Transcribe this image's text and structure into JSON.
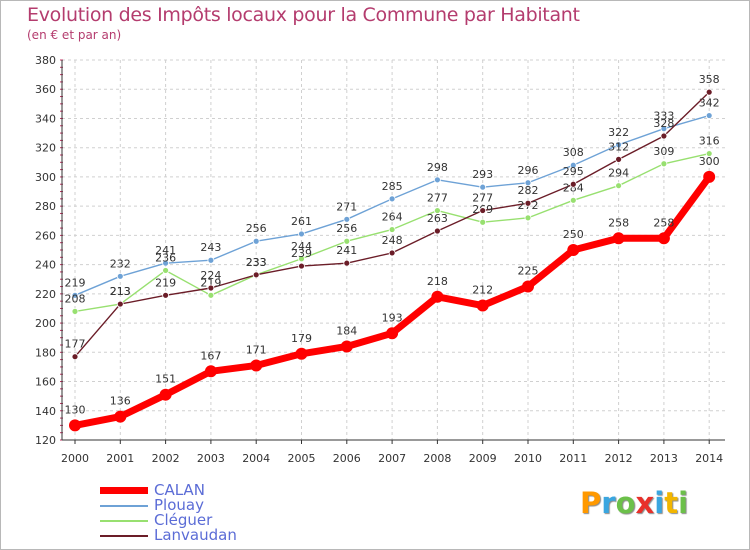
{
  "chart_data": {
    "type": "line",
    "title": "Evolution des Impôts locaux pour la Commune par Habitant",
    "subtitle": "(en € et par an)",
    "xlabel": "",
    "ylabel": "",
    "x": [
      "2000",
      "2001",
      "2002",
      "2003",
      "2004",
      "2005",
      "2006",
      "2007",
      "2008",
      "2009",
      "2010",
      "2011",
      "2012",
      "2013",
      "2014"
    ],
    "ylim": [
      120,
      380
    ],
    "yticks": [
      120,
      140,
      160,
      180,
      200,
      220,
      240,
      260,
      280,
      300,
      320,
      340,
      360,
      380
    ],
    "grid": true,
    "legend_position": "bottom-left",
    "series": [
      {
        "name": "CALAN",
        "color": "#ff0000",
        "values": [
          130,
          136,
          151,
          167,
          171,
          179,
          184,
          193,
          218,
          212,
          225,
          250,
          258,
          258,
          300
        ]
      },
      {
        "name": "Plouay",
        "color": "#6ea2d6",
        "values": [
          219,
          232,
          241,
          243,
          256,
          261,
          271,
          285,
          298,
          293,
          296,
          308,
          322,
          333,
          342
        ]
      },
      {
        "name": "Cléguer",
        "color": "#98e070",
        "values": [
          208,
          213,
          236,
          219,
          233,
          244,
          256,
          264,
          277,
          269,
          272,
          284,
          294,
          309,
          316
        ]
      },
      {
        "name": "Lanvaudan",
        "color": "#6b1d28",
        "values": [
          177,
          213,
          219,
          224,
          233,
          239,
          241,
          248,
          263,
          277,
          282,
          295,
          312,
          328,
          358
        ]
      }
    ]
  },
  "brand": {
    "letters": [
      "P",
      "r",
      "o",
      "x",
      "i",
      "t",
      "i"
    ],
    "colors": [
      "#ff9900",
      "#3aa6e0",
      "#6cc04a",
      "#e8302a",
      "#3aa6e0",
      "#f2b600",
      "#6cc04a"
    ]
  }
}
